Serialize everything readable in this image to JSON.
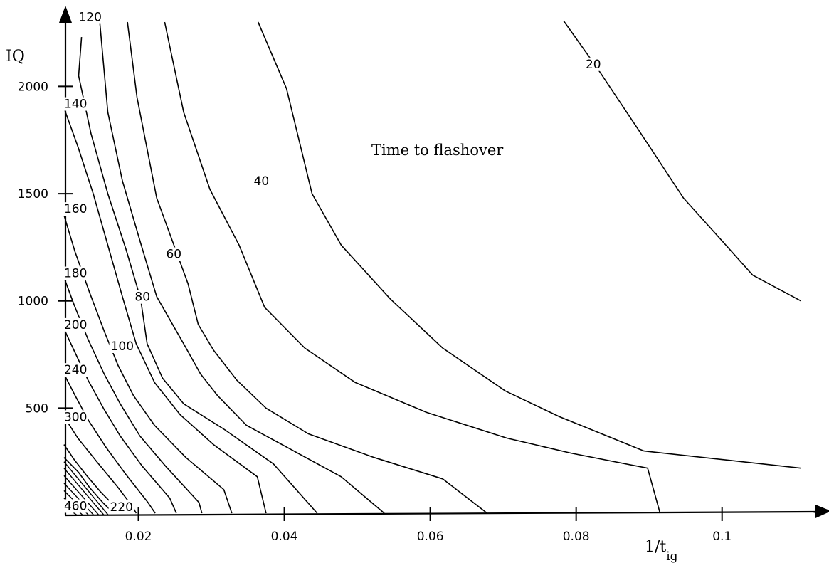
{
  "chart_data": {
    "type": "line",
    "title": "",
    "annotation": "Time to flashover",
    "xlabel": "1/t",
    "xlabel_sub": "ig",
    "ylabel": "IQ",
    "xlim": [
      0.01,
      0.113
    ],
    "ylim": [
      0,
      2330
    ],
    "grid": false,
    "x_ticks": [
      {
        "value": 0.02,
        "label": "0.02"
      },
      {
        "value": 0.04,
        "label": "0.04"
      },
      {
        "value": 0.06,
        "label": "0.06"
      },
      {
        "value": 0.08,
        "label": "0.08"
      },
      {
        "value": 0.1,
        "label": "0.1"
      }
    ],
    "y_ticks": [
      {
        "value": 500,
        "label": "500"
      },
      {
        "value": 1000,
        "label": "1000"
      },
      {
        "value": 1500,
        "label": "1500"
      },
      {
        "value": 2000,
        "label": "2000"
      }
    ],
    "series": [
      {
        "name": "20",
        "x": [
          0.0783,
          0.0828,
          0.0885,
          0.0947,
          0.1,
          0.1042,
          0.1108
        ],
        "y": [
          2305,
          2090,
          1800,
          1480,
          1280,
          1120,
          1000
        ]
      },
      {
        "name": "40",
        "x": [
          0.0364,
          0.0403,
          0.0438,
          0.0478,
          0.0545,
          0.0617,
          0.0703,
          0.0777,
          0.0893,
          0.1108
        ],
        "y": [
          2300,
          1990,
          1500,
          1260,
          1010,
          780,
          580,
          460,
          300,
          220
        ]
      },
      {
        "name": "60",
        "x": [
          0.0236,
          0.0262,
          0.0298,
          0.0338,
          0.0373,
          0.0428,
          0.0497,
          0.0595,
          0.0705,
          0.0793,
          0.0898,
          0.0915
        ],
        "y": [
          2300,
          1880,
          1520,
          1260,
          970,
          780,
          620,
          480,
          360,
          290,
          220,
          10
        ]
      },
      {
        "name": "80",
        "x": [
          0.0185,
          0.0198,
          0.0225,
          0.0268,
          0.0282,
          0.0303,
          0.0335,
          0.0375,
          0.0433,
          0.0523,
          0.0617,
          0.0678
        ],
        "y": [
          2300,
          1950,
          1480,
          1080,
          890,
          770,
          630,
          500,
          380,
          270,
          170,
          10
        ]
      },
      {
        "name": "100",
        "x": [
          0.0147,
          0.0158,
          0.0178,
          0.0203,
          0.0225,
          0.0262,
          0.0285,
          0.0308,
          0.0348,
          0.0413,
          0.0478,
          0.0537
        ],
        "y": [
          2300,
          1880,
          1560,
          1270,
          1020,
          800,
          660,
          560,
          420,
          300,
          180,
          10
        ]
      },
      {
        "name": "120",
        "x": [
          0.0122,
          0.0118,
          0.0135,
          0.0158,
          0.0183,
          0.0203,
          0.0212,
          0.0233,
          0.0262,
          0.0318,
          0.0385,
          0.0445
        ],
        "y": [
          2230,
          2050,
          1780,
          1500,
          1240,
          1010,
          800,
          640,
          520,
          400,
          240,
          10
        ]
      },
      {
        "name": "140",
        "x": [
          0.0098,
          0.0117,
          0.0138,
          0.0158,
          0.0178,
          0.0197,
          0.0222,
          0.0257,
          0.0303,
          0.0363,
          0.0375
        ],
        "y": [
          1900,
          1720,
          1500,
          1260,
          1020,
          800,
          620,
          470,
          330,
          180,
          10
        ]
      },
      {
        "name": "160",
        "x": [
          0.0098,
          0.0113,
          0.0133,
          0.0153,
          0.0172,
          0.0193,
          0.0222,
          0.0265,
          0.0317,
          0.0328
        ],
        "y": [
          1400,
          1230,
          1040,
          860,
          700,
          560,
          420,
          270,
          120,
          10
        ]
      },
      {
        "name": "180",
        "x": [
          0.0098,
          0.0112,
          0.0131,
          0.0153,
          0.0175,
          0.0202,
          0.0237,
          0.0283,
          0.0287
        ],
        "y": [
          1110,
          980,
          820,
          660,
          520,
          370,
          230,
          60,
          10
        ]
      },
      {
        "name": "200",
        "x": [
          0.0098,
          0.0113,
          0.0131,
          0.0152,
          0.0175,
          0.0205,
          0.0243,
          0.0252
        ],
        "y": [
          870,
          760,
          630,
          500,
          370,
          230,
          80,
          10
        ]
      },
      {
        "name": "240",
        "x": [
          0.0098,
          0.0113,
          0.0132,
          0.0155,
          0.0183,
          0.0213,
          0.0223
        ],
        "y": [
          660,
          560,
          440,
          320,
          190,
          60,
          10
        ]
      },
      {
        "name": "300",
        "x": [
          0.0098,
          0.0117,
          0.0143,
          0.0172,
          0.0192,
          0.0197
        ],
        "y": [
          460,
          360,
          250,
          130,
          40,
          10
        ]
      },
      {
        "name": "460",
        "x": [
          0.0098,
          0.0112,
          0.0128,
          0.0148,
          0.0168,
          0.0177
        ],
        "y": [
          330,
          260,
          190,
          110,
          40,
          10
        ]
      },
      {
        "name": "220",
        "x": [
          0.0098,
          0.0118,
          0.0133,
          0.0151,
          0.0166
        ],
        "y": [
          270,
          200,
          130,
          60,
          10
        ]
      }
    ],
    "hatch_levels": [
      "",
      "",
      "",
      "",
      "",
      "",
      ""
    ],
    "hatch_starts": [
      250,
      220,
      185,
      150,
      115,
      80,
      45
    ],
    "hatch_ends": [
      0.0159,
      0.0153,
      0.0146,
      0.0139,
      0.0132,
      0.0124,
      0.0116
    ],
    "level_labels": [
      {
        "text": "120",
        "x": 0.0118,
        "y": 2305
      },
      {
        "text": "140",
        "x": 0.0098,
        "y": 1900
      },
      {
        "text": "160",
        "x": 0.0098,
        "y": 1410
      },
      {
        "text": "180",
        "x": 0.0098,
        "y": 1110
      },
      {
        "text": "200",
        "x": 0.0098,
        "y": 870
      },
      {
        "text": "240",
        "x": 0.0098,
        "y": 660
      },
      {
        "text": "300",
        "x": 0.0098,
        "y": 440
      },
      {
        "text": "460",
        "x": 0.0098,
        "y": 25
      },
      {
        "text": "220",
        "x": 0.0161,
        "y": 20
      },
      {
        "text": "100",
        "x": 0.0162,
        "y": 770
      },
      {
        "text": "80",
        "x": 0.0195,
        "y": 1000
      },
      {
        "text": "60",
        "x": 0.0238,
        "y": 1200
      },
      {
        "text": "40",
        "x": 0.0358,
        "y": 1540
      },
      {
        "text": "20",
        "x": 0.0813,
        "y": 2085
      }
    ]
  }
}
